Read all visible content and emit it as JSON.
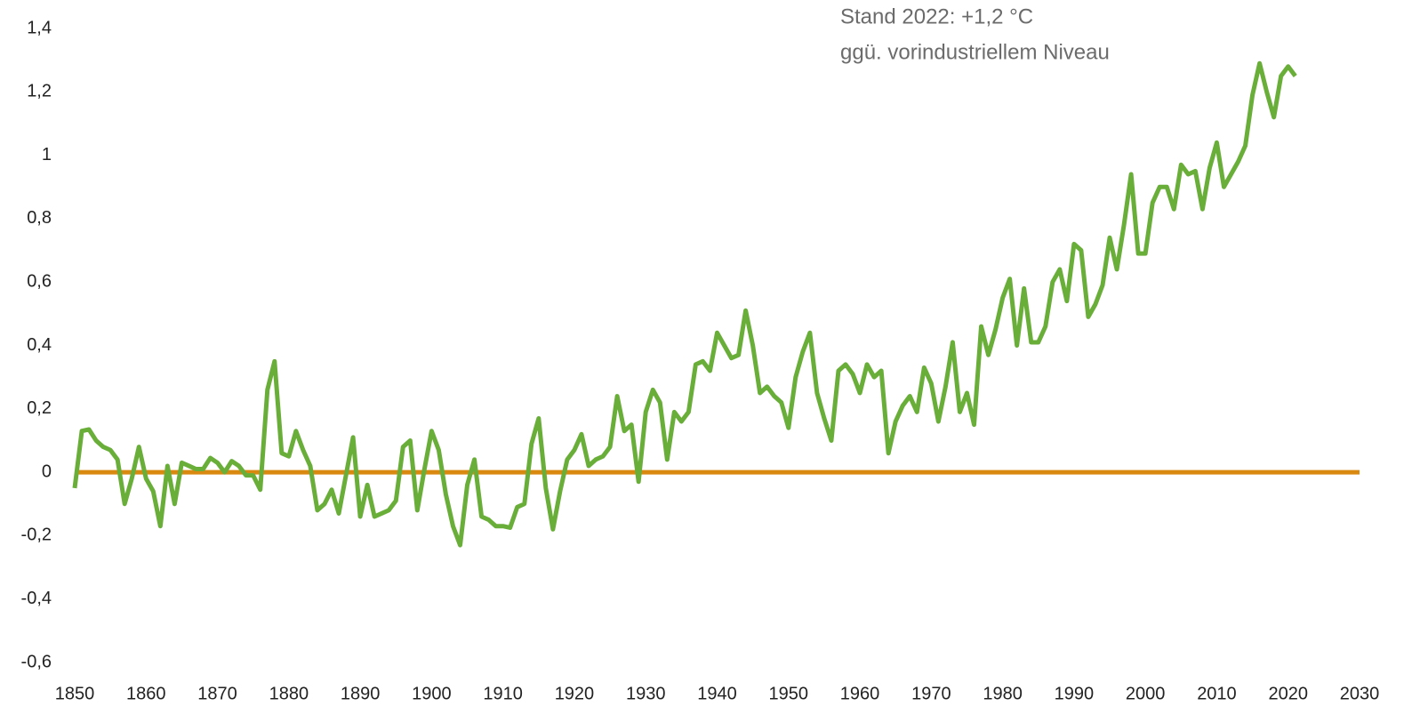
{
  "chart_data": {
    "type": "line",
    "annotations": [
      "Stand 2022: +1,2 °C",
      "ggü. vorindustriellem Niveau"
    ],
    "xlim": [
      1850,
      2030
    ],
    "xticks": [
      1850,
      1860,
      1870,
      1880,
      1890,
      1900,
      1910,
      1920,
      1930,
      1940,
      1950,
      1960,
      1970,
      1980,
      1990,
      2000,
      2010,
      2020,
      2030
    ],
    "ylim": [
      -0.6,
      1.4
    ],
    "yticks": [
      {
        "value": -0.6,
        "label": "-0,6"
      },
      {
        "value": -0.4,
        "label": "-0,4"
      },
      {
        "value": -0.2,
        "label": "-0,2"
      },
      0,
      {
        "value": 0.2,
        "label": "0,2"
      },
      {
        "value": 0.4,
        "label": "0,4"
      },
      {
        "value": 0.6,
        "label": "0,6"
      },
      {
        "value": 0.8,
        "label": "0,8"
      },
      1,
      {
        "value": 1.2,
        "label": "1,2"
      },
      {
        "value": 1.4,
        "label": "1,4"
      }
    ],
    "series": [
      {
        "color": "#6aae3a",
        "x": [
          1850,
          1851,
          1852,
          1853,
          1854,
          1855,
          1856,
          1857,
          1858,
          1859,
          1860,
          1861,
          1862,
          1863,
          1864,
          1865,
          1866,
          1867,
          1868,
          1869,
          1870,
          1871,
          1872,
          1873,
          1874,
          1875,
          1876,
          1877,
          1878,
          1879,
          1880,
          1881,
          1882,
          1883,
          1884,
          1885,
          1886,
          1887,
          1888,
          1889,
          1890,
          1891,
          1892,
          1893,
          1894,
          1895,
          1896,
          1897,
          1898,
          1899,
          1900,
          1901,
          1902,
          1903,
          1904,
          1905,
          1906,
          1907,
          1908,
          1909,
          1910,
          1911,
          1912,
          1913,
          1914,
          1915,
          1916,
          1917,
          1918,
          1919,
          1920,
          1921,
          1922,
          1923,
          1924,
          1925,
          1926,
          1927,
          1928,
          1929,
          1930,
          1931,
          1932,
          1933,
          1934,
          1935,
          1936,
          1937,
          1938,
          1939,
          1940,
          1941,
          1942,
          1943,
          1944,
          1945,
          1946,
          1947,
          1948,
          1949,
          1950,
          1951,
          1952,
          1953,
          1954,
          1955,
          1956,
          1957,
          1958,
          1959,
          1960,
          1961,
          1962,
          1963,
          1964,
          1965,
          1966,
          1967,
          1968,
          1969,
          1970,
          1971,
          1972,
          1973,
          1974,
          1975,
          1976,
          1977,
          1978,
          1979,
          1980,
          1981,
          1982,
          1983,
          1984,
          1985,
          1986,
          1987,
          1988,
          1989,
          1990,
          1991,
          1992,
          1993,
          1994,
          1995,
          1996,
          1997,
          1998,
          1999,
          2000,
          2001,
          2002,
          2003,
          2004,
          2005,
          2006,
          2007,
          2008,
          2009,
          2010,
          2011,
          2012,
          2013,
          2014,
          2015,
          2016,
          2017,
          2018,
          2019,
          2020,
          2021
        ],
        "values": [
          -0.05,
          0.13,
          0.135,
          0.1,
          0.08,
          0.07,
          0.04,
          -0.1,
          -0.02,
          0.08,
          -0.02,
          -0.06,
          -0.17,
          0.02,
          -0.1,
          0.03,
          0.02,
          0.01,
          0.01,
          0.045,
          0.03,
          0,
          0.035,
          0.02,
          -0.01,
          -0.01,
          -0.055,
          0.26,
          0.35,
          0.06,
          0.05,
          0.13,
          0.07,
          0.02,
          -0.12,
          -0.1,
          -0.055,
          -0.13,
          -0.01,
          0.11,
          -0.14,
          -0.04,
          -0.14,
          -0.13,
          -0.12,
          -0.09,
          0.08,
          0.1,
          -0.12,
          0.01,
          0.13,
          0.07,
          -0.07,
          -0.17,
          -0.23,
          -0.04,
          0.04,
          -0.14,
          -0.15,
          -0.17,
          -0.17,
          -0.175,
          -0.11,
          -0.1,
          0.09,
          0.17,
          -0.05,
          -0.18,
          -0.06,
          0.04,
          0.07,
          0.12,
          0.02,
          0.04,
          0.05,
          0.08,
          0.24,
          0.13,
          0.15,
          -0.03,
          0.19,
          0.26,
          0.22,
          0.04,
          0.19,
          0.16,
          0.19,
          0.34,
          0.35,
          0.32,
          0.44,
          0.4,
          0.36,
          0.37,
          0.51,
          0.4,
          0.25,
          0.27,
          0.24,
          0.22,
          0.14,
          0.3,
          0.38,
          0.44,
          0.25,
          0.17,
          0.1,
          0.32,
          0.34,
          0.31,
          0.25,
          0.34,
          0.3,
          0.32,
          0.06,
          0.16,
          0.21,
          0.24,
          0.19,
          0.33,
          0.28,
          0.16,
          0.27,
          0.41,
          0.19,
          0.25,
          0.15,
          0.46,
          0.37,
          0.45,
          0.55,
          0.61,
          0.4,
          0.58,
          0.41,
          0.41,
          0.46,
          0.6,
          0.64,
          0.54,
          0.72,
          0.7,
          0.49,
          0.53,
          0.59,
          0.74,
          0.64,
          0.78,
          0.94,
          0.69,
          0.69,
          0.85,
          0.9,
          0.9,
          0.83,
          0.97,
          0.94,
          0.95,
          0.83,
          0.96,
          1.04,
          0.9,
          0.94,
          0.98,
          1.03,
          1.19,
          1.29,
          1.2,
          1.12,
          1.25,
          1.28,
          1.25
        ]
      },
      {
        "color": "#d9890f",
        "x": [
          1850,
          2030
        ],
        "values": [
          0,
          0
        ]
      }
    ]
  }
}
